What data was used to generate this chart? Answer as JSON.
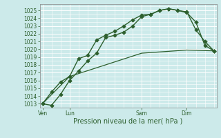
{
  "xlabel": "Pression niveau de la mer( hPa )",
  "bg_color": "#cceaea",
  "grid_color_major": "#ffffff",
  "grid_color_minor": "#dff0f0",
  "line_color": "#2d5f2d",
  "ylim_min": 1012.5,
  "ylim_max": 1025.8,
  "yticks": [
    1013,
    1014,
    1015,
    1016,
    1017,
    1018,
    1019,
    1020,
    1021,
    1022,
    1023,
    1024,
    1025
  ],
  "xtick_labels": [
    "Ven",
    "Lun",
    "Sam",
    "Dim"
  ],
  "xtick_positions": [
    0,
    3,
    11,
    16
  ],
  "total_points": 20,
  "series1_x": [
    0,
    1,
    2,
    3,
    4,
    5,
    6,
    7,
    8,
    9,
    10,
    11,
    12,
    13,
    14,
    15,
    16,
    17,
    18,
    19
  ],
  "series1_y": [
    1013.0,
    1012.8,
    1014.2,
    1016.0,
    1017.2,
    1018.5,
    1019.5,
    1021.5,
    1021.8,
    1022.2,
    1023.0,
    1024.2,
    1024.5,
    1025.0,
    1025.2,
    1025.0,
    1024.8,
    1022.5,
    1021.0,
    1019.8
  ],
  "series2_x": [
    0,
    1,
    2,
    3,
    4,
    5,
    6,
    7,
    8,
    9,
    10,
    11,
    12,
    13,
    14,
    15,
    16,
    17,
    18,
    19
  ],
  "series2_y": [
    1013.0,
    1014.5,
    1015.8,
    1016.5,
    1018.8,
    1019.2,
    1021.2,
    1021.8,
    1022.3,
    1023.0,
    1023.8,
    1024.4,
    1024.5,
    1025.0,
    1025.2,
    1025.0,
    1024.7,
    1023.5,
    1020.5,
    1019.8
  ],
  "series3_x": [
    0,
    3,
    11,
    16,
    19
  ],
  "series3_y": [
    1013.0,
    1016.5,
    1019.5,
    1019.9,
    1019.8
  ],
  "vline_positions": [
    0,
    3,
    11,
    16
  ],
  "vline_color": "#556655",
  "xlabel_fontsize": 7,
  "tick_fontsize": 5.5,
  "marker_size": 2.8,
  "line_width": 1.0
}
